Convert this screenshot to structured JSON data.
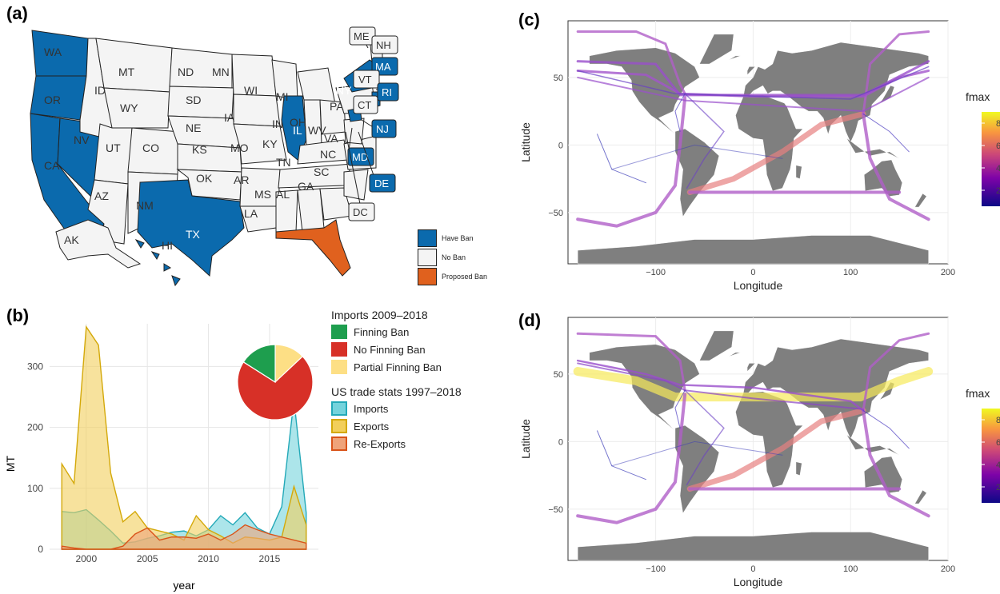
{
  "panels": {
    "a": "(a)",
    "b": "(b)",
    "c": "(c)",
    "d": "(d)"
  },
  "map_a": {
    "legend": [
      {
        "label": "Have Ban",
        "color": "#0b6aad"
      },
      {
        "label": "No Ban",
        "color": "#f4f4f4"
      },
      {
        "label": "Proposed Ban",
        "color": "#e0611e"
      }
    ],
    "states": {
      "ban": [
        "WA",
        "OR",
        "CA",
        "NV",
        "TX",
        "IL",
        "NY",
        "HI"
      ],
      "proposed": [
        "FL"
      ],
      "no_ban": [
        "MT",
        "ID",
        "WY",
        "UT",
        "CO",
        "AZ",
        "NM",
        "ND",
        "SD",
        "NE",
        "KS",
        "OK",
        "MN",
        "IA",
        "MO",
        "AR",
        "LA",
        "WI",
        "MI",
        "IN",
        "OH",
        "KY",
        "TN",
        "MS",
        "AL",
        "GA",
        "SC",
        "NC",
        "VA",
        "WV",
        "PA",
        "VT",
        "ME",
        "NH",
        "CT",
        "AK"
      ]
    },
    "callouts": [
      {
        "label": "ME",
        "ban": false
      },
      {
        "label": "NH",
        "ban": false
      },
      {
        "label": "MA",
        "ban": true
      },
      {
        "label": "VT",
        "ban": false
      },
      {
        "label": "RI",
        "ban": true
      },
      {
        "label": "CT",
        "ban": false
      },
      {
        "label": "NJ",
        "ban": true
      },
      {
        "label": "MD",
        "ban": true
      },
      {
        "label": "DE",
        "ban": true
      },
      {
        "label": "DC",
        "ban": false
      }
    ]
  },
  "chart_data": [
    {
      "type": "area",
      "panel": "b",
      "xlabel": "year",
      "ylabel": "MT",
      "xlim": [
        1997,
        2019
      ],
      "ylim": [
        0,
        370
      ],
      "xticks": [
        2000,
        2005,
        2010,
        2015
      ],
      "yticks": [
        0,
        100,
        200,
        300
      ],
      "legend_title": "US trade stats 1997–2018",
      "series": [
        {
          "name": "Imports",
          "fill": "#74d3dc",
          "stroke": "#23a9b8",
          "x": [
            1998,
            1999,
            2000,
            2001,
            2002,
            2003,
            2004,
            2005,
            2006,
            2007,
            2008,
            2009,
            2010,
            2011,
            2012,
            2013,
            2014,
            2015,
            2016,
            2017,
            2018
          ],
          "values": [
            62,
            60,
            65,
            48,
            30,
            10,
            12,
            18,
            22,
            28,
            30,
            22,
            32,
            55,
            40,
            60,
            35,
            25,
            70,
            245,
            60
          ]
        },
        {
          "name": "Exports",
          "fill": "#f2cf5b",
          "stroke": "#d4a90a",
          "x": [
            1998,
            1999,
            2000,
            2001,
            2002,
            2003,
            2004,
            2005,
            2006,
            2007,
            2008,
            2009,
            2010,
            2011,
            2012,
            2013,
            2014,
            2015,
            2016,
            2017,
            2018
          ],
          "values": [
            140,
            108,
            365,
            335,
            125,
            45,
            62,
            35,
            30,
            25,
            15,
            55,
            32,
            22,
            10,
            20,
            18,
            15,
            20,
            103,
            40
          ]
        },
        {
          "name": "Re-Exports",
          "fill": "#efa37a",
          "stroke": "#d9541a",
          "x": [
            1998,
            1999,
            2000,
            2001,
            2002,
            2003,
            2004,
            2005,
            2006,
            2007,
            2008,
            2009,
            2010,
            2011,
            2012,
            2013,
            2014,
            2015,
            2016,
            2017,
            2018
          ],
          "values": [
            5,
            2,
            0,
            0,
            0,
            5,
            25,
            35,
            15,
            20,
            20,
            18,
            25,
            15,
            25,
            40,
            32,
            25,
            20,
            15,
            10
          ]
        }
      ]
    },
    {
      "type": "pie",
      "panel": "b",
      "title": "Imports 2009–2018",
      "categories": [
        "Finning Ban",
        "No Finning Ban",
        "Partial Finning Ban"
      ],
      "values": [
        16,
        71,
        13
      ],
      "colors": [
        "#1e9e4e",
        "#d73027",
        "#fddf85"
      ]
    },
    {
      "type": "map-flows",
      "panel": "c",
      "xlabel": "Longitude",
      "ylabel": "Latitude",
      "xlim": [
        -190,
        200
      ],
      "ylim": [
        -88,
        92
      ],
      "xticks": [
        -100,
        0,
        100,
        200
      ],
      "yticks": [
        -50,
        0,
        50
      ],
      "colorbar_title": "fmax",
      "colorbar_ticks": [
        "8",
        "6",
        "4",
        "2"
      ]
    },
    {
      "type": "map-flows",
      "panel": "d",
      "xlabel": "Longitude",
      "ylabel": "Latitude",
      "xlim": [
        -190,
        200
      ],
      "ylim": [
        -88,
        92
      ],
      "xticks": [
        -100,
        0,
        100,
        200
      ],
      "yticks": [
        -50,
        0,
        50
      ],
      "colorbar_title": "fmax",
      "colorbar_ticks": [
        "8",
        "6",
        "4",
        "2"
      ]
    }
  ]
}
